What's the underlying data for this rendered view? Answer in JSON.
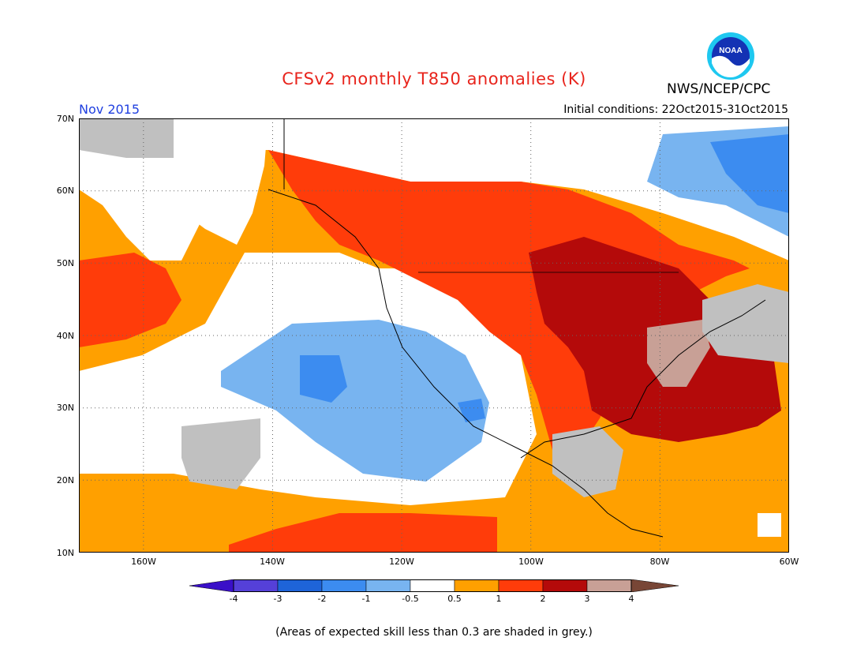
{
  "title": "CFSv2 monthly T850 anomalies (K)",
  "agency": "NWS/NCEP/CPC",
  "logo_text": "NOAA",
  "valid_period": "Nov 2015",
  "initial_conditions": "Initial conditions: 22Oct2015-31Oct2015",
  "lat_labels": [
    "70N",
    "60N",
    "50N",
    "40N",
    "30N",
    "20N",
    "10N"
  ],
  "lon_labels": [
    "160W",
    "140W",
    "120W",
    "100W",
    "80W",
    "60W"
  ],
  "colorbar": {
    "ticks": [
      "-4",
      "-3",
      "-2",
      "-1",
      "-0.5",
      "0.5",
      "1",
      "2",
      "3",
      "4"
    ],
    "colors": [
      "#3a10c8",
      "#5540d8",
      "#1e64d8",
      "#3c8cf0",
      "#78b4f0",
      "#ffffff",
      "#ffa000",
      "#ff3c0a",
      "#b40a0a",
      "#c8a096",
      "#784636"
    ]
  },
  "note": "(Areas of expected skill less than 0.3 are shaded in grey.)",
  "colors": {
    "title": "#e8241c",
    "valid_period": "#2040e0",
    "skill_grey": "#c0c0c0"
  }
}
